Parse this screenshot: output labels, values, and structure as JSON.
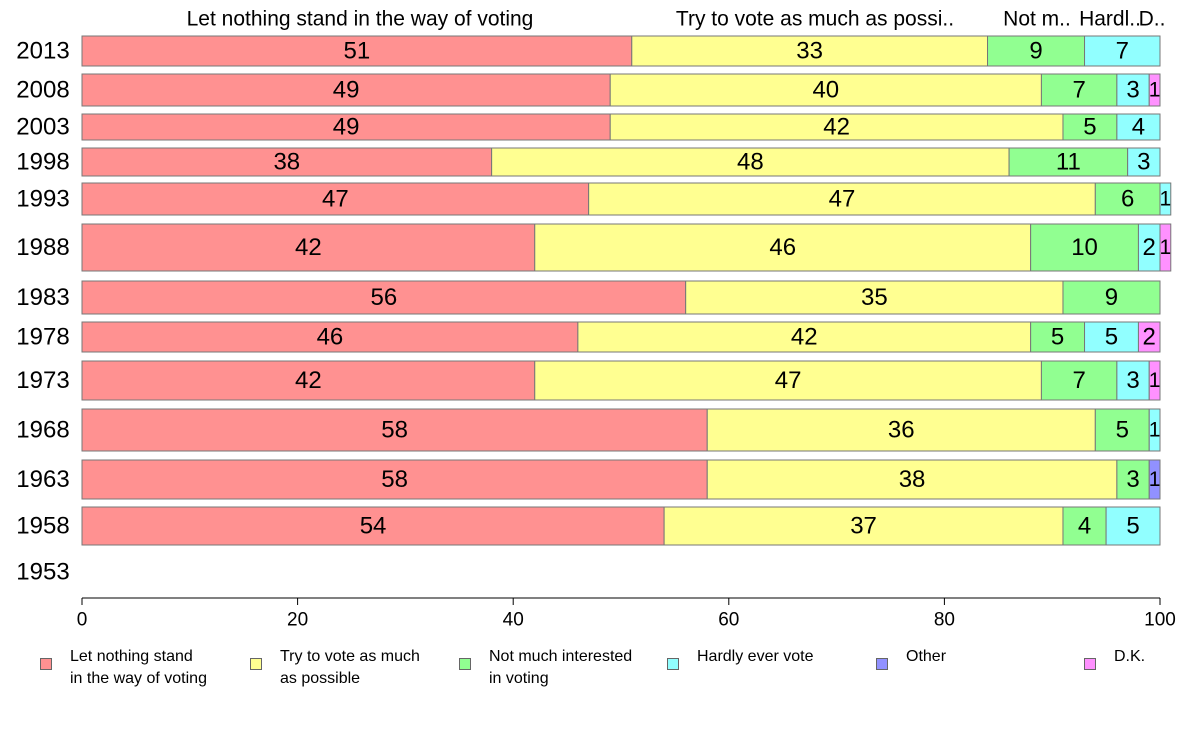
{
  "chart_data": {
    "type": "bar",
    "orientation": "horizontal",
    "stacked": true,
    "categories": [
      "2013",
      "2008",
      "2003",
      "1998",
      "1993",
      "1988",
      "1983",
      "1978",
      "1973",
      "1968",
      "1963",
      "1958",
      "1953"
    ],
    "series": [
      {
        "name": "Let nothing stand in the way of voting",
        "color": "#ff9191",
        "values": [
          51,
          49,
          49,
          38,
          47,
          42,
          56,
          46,
          42,
          58,
          58,
          54,
          null
        ]
      },
      {
        "name": "Try to vote as much as possible",
        "color": "#ffff91",
        "values": [
          33,
          40,
          42,
          48,
          47,
          46,
          35,
          42,
          47,
          36,
          38,
          37,
          null
        ]
      },
      {
        "name": "Not much interested in voting",
        "color": "#91ff91",
        "values": [
          9,
          7,
          5,
          11,
          6,
          10,
          9,
          5,
          7,
          5,
          3,
          4,
          null
        ]
      },
      {
        "name": "Hardly ever vote",
        "color": "#91ffff",
        "values": [
          7,
          3,
          4,
          3,
          1,
          2,
          0,
          5,
          3,
          1,
          0,
          5,
          null
        ]
      },
      {
        "name": "Other",
        "color": "#9191ff",
        "values": [
          0,
          0,
          0,
          0,
          0,
          0,
          0,
          0,
          0,
          0,
          1,
          0,
          null
        ]
      },
      {
        "name": "D.K.",
        "color": "#ff91ff",
        "values": [
          0,
          1,
          0,
          0,
          0,
          1,
          0,
          2,
          1,
          0,
          0,
          0,
          null
        ]
      }
    ],
    "top_labels": [
      "Let nothing stand in the way of voting",
      "Try to vote as much as possi..",
      "Not m..",
      "Hardl..",
      "D.."
    ],
    "xlim": [
      0,
      100
    ],
    "xticks": [
      0,
      20,
      40,
      60,
      80,
      100
    ],
    "grid": false,
    "legend_position": "bottom"
  },
  "legend": [
    {
      "label": "Let nothing stand\nin the way of voting",
      "color": "#ff9191"
    },
    {
      "label": "Try to vote as much\nas possible",
      "color": "#ffff91"
    },
    {
      "label": "Not much interested\nin voting",
      "color": "#91ff91"
    },
    {
      "label": "Hardly ever vote",
      "color": "#91ffff"
    },
    {
      "label": "Other",
      "color": "#9191ff"
    },
    {
      "label": "D.K.",
      "color": "#ff91ff"
    }
  ]
}
